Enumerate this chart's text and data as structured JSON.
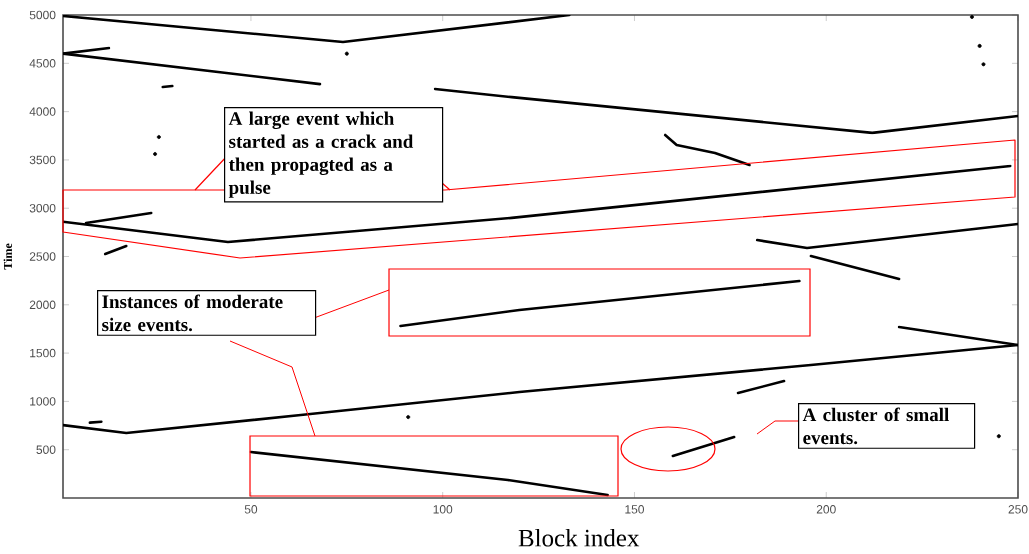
{
  "chart_data": {
    "type": "line",
    "xlabel": "Block index",
    "ylabel": "Time",
    "xlim": [
      1,
      250
    ],
    "ylim": [
      0,
      5000
    ],
    "xticks": [
      50,
      100,
      150,
      200,
      250
    ],
    "yticks": [
      500,
      1000,
      1500,
      2000,
      2500,
      3000,
      3500,
      4000,
      4500,
      5000
    ],
    "series": [
      {
        "color": "#000000",
        "x": [
          1,
          74,
          133
        ],
        "values": [
          4990,
          4720,
          5000
        ]
      },
      {
        "color": "#000000",
        "x": [
          1,
          68
        ],
        "values": [
          4600,
          4285
        ]
      },
      {
        "color": "#000000",
        "x": [
          98,
          118,
          212,
          250
        ],
        "values": [
          4234,
          4150,
          3780,
          3955
        ]
      },
      {
        "color": "#000000",
        "x": [
          1,
          44,
          118,
          248
        ],
        "values": [
          2860,
          2650,
          2900,
          3437
        ]
      },
      {
        "color": "#000000",
        "x": [
          182,
          195,
          250
        ],
        "values": [
          2670,
          2588,
          2836
        ]
      },
      {
        "color": "#000000",
        "x": [
          1,
          17.5,
          63,
          120,
          196,
          250
        ],
        "values": [
          755,
          673,
          859,
          1097,
          1377,
          1584
        ]
      },
      {
        "color": "#000000",
        "x": [
          89,
          120,
          193
        ],
        "values": [
          1780,
          1946,
          2246
        ]
      },
      {
        "color": "#000000",
        "x": [
          50,
          117,
          143
        ],
        "values": [
          476,
          186,
          31
        ]
      },
      {
        "color": "#000000",
        "x": [
          219,
          250
        ],
        "values": [
          1770,
          1584
        ]
      },
      {
        "color": "#000000",
        "x": [
          160,
          176
        ],
        "values": [
          435,
          631
        ]
      },
      {
        "color": "#000000",
        "x": [
          177,
          189
        ],
        "values": [
          1087,
          1211
        ]
      },
      {
        "color": "#000000",
        "x": [
          158,
          161,
          171,
          180
        ],
        "values": [
          3758,
          3654,
          3571,
          3447
        ]
      },
      {
        "color": "#000000",
        "x": [
          196,
          219
        ],
        "values": [
          2505,
          2267
        ]
      },
      {
        "color": "#000000",
        "x": [
          1,
          13
        ],
        "values": [
          4600,
          4658
        ]
      },
      {
        "color": "#000000",
        "x": [
          27,
          29.5
        ],
        "values": [
          4255,
          4265
        ]
      },
      {
        "color": "#000000",
        "x": [
          7,
          24
        ],
        "values": [
          2847,
          2950
        ]
      },
      {
        "color": "#000000",
        "x": [
          12,
          17.5
        ],
        "values": [
          2526,
          2609
        ]
      },
      {
        "color": "#000000",
        "x": [
          8,
          11
        ],
        "values": [
          780,
          790
        ]
      },
      {
        "type": "scatter",
        "color": "#000000",
        "x": [
          26,
          25,
          91,
          75,
          238,
          240,
          241,
          245
        ],
        "values": [
          3737,
          3561,
          838,
          4600,
          4980,
          4680,
          4490,
          640
        ]
      }
    ],
    "annotations": [
      "A large event which started as a crack and then propagted as a pulse",
      "Instances of moderate size events.",
      "A cluster of small events."
    ]
  }
}
